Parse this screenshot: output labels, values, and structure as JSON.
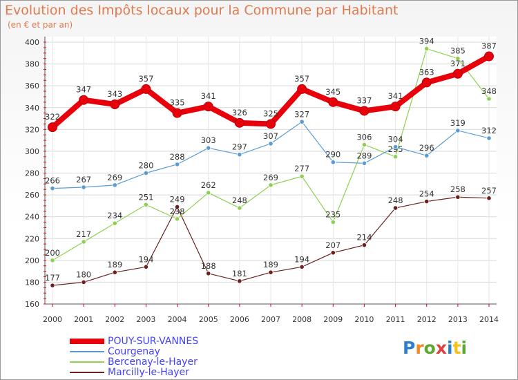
{
  "header": {
    "title": "Evolution des Impôts locaux pour la Commune par Habitant",
    "subtitle": "(en € et par an)"
  },
  "logo": {
    "text": "Proxiti",
    "colors": [
      "#2a7fd0",
      "#f08a24",
      "#5aa832",
      "#e04040",
      "#2a7fd0",
      "#f2c318",
      "#5aa832"
    ]
  },
  "chart_data": {
    "type": "line",
    "x": [
      2000,
      2001,
      2002,
      2003,
      2004,
      2005,
      2006,
      2007,
      2008,
      2009,
      2010,
      2011,
      2012,
      2013,
      2014
    ],
    "ylim": [
      160,
      400
    ],
    "yticks": [
      160,
      180,
      200,
      220,
      240,
      260,
      280,
      300,
      320,
      340,
      360,
      380,
      400
    ],
    "grid": true,
    "legend_position": "bottom-left",
    "series": [
      {
        "name": "POUY-SUR-VANNES",
        "color": "#e8000b",
        "labelColor": "#4040ff",
        "values": [
          322,
          347,
          343,
          357,
          335,
          341,
          326,
          325,
          357,
          345,
          337,
          341,
          363,
          371,
          387
        ]
      },
      {
        "name": "Courgenay",
        "color": "#5b9bd5",
        "labelColor": "#4040ff",
        "values": [
          266,
          267,
          269,
          280,
          288,
          303,
          297,
          307,
          327,
          290,
          289,
          304,
          296,
          319,
          312
        ]
      },
      {
        "name": "Bercenay-le-Hayer",
        "color": "#8fd050",
        "labelColor": "#4040ff",
        "values": [
          200,
          217,
          234,
          251,
          238,
          262,
          248,
          269,
          277,
          235,
          306,
          295,
          394,
          385,
          348
        ]
      },
      {
        "name": "Marcilly-le-Hayer",
        "color": "#6b1f1f",
        "labelColor": "#4040ff",
        "values": [
          177,
          180,
          189,
          194,
          249,
          188,
          181,
          189,
          194,
          207,
          214,
          248,
          254,
          258,
          257
        ]
      }
    ]
  }
}
